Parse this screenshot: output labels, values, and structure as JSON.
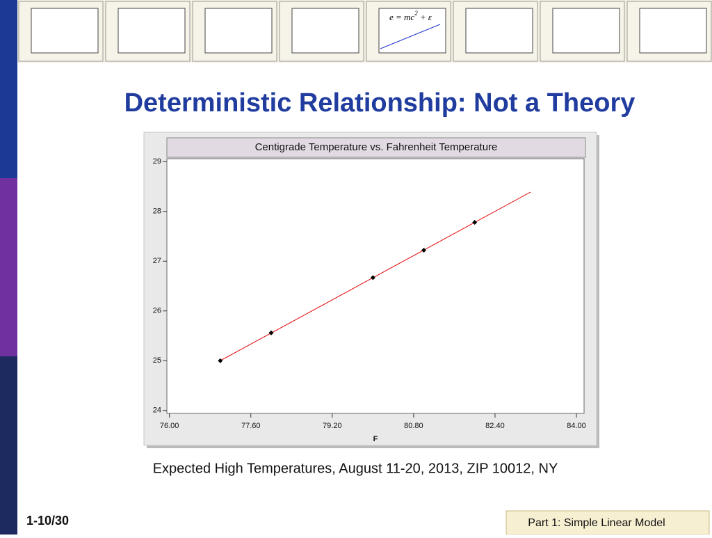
{
  "slide": {
    "title": "Deterministic Relationship: Not a Theory",
    "caption": "Expected High Temperatures, August 11-20, 2013, ZIP 10012, NY",
    "page_number": "1-10/30",
    "section": "Part 1: Simple Linear Model",
    "banner_equation": {
      "base": "e = mc",
      "exponent": "2",
      "tail": "+ ε"
    }
  },
  "chart_data": {
    "type": "scatter",
    "title": "Centigrade Temperature vs. Fahrenheit Temperature",
    "x_label": "F",
    "x": [
      77,
      78,
      80,
      81,
      82
    ],
    "series": [
      {
        "color": "#000000",
        "values": [
          25.0,
          25.56,
          26.67,
          27.22,
          27.78
        ]
      }
    ],
    "fit_line": {
      "color": "#e00000",
      "x": [
        77,
        83.1
      ],
      "values": [
        25.0,
        28.39
      ]
    },
    "xlim": [
      75.95,
      84.15
    ],
    "ylim": [
      23.94,
      29.06
    ],
    "xticks": [
      {
        "value": 76,
        "label": "76.00"
      },
      {
        "value": 77.6,
        "label": "77.60"
      },
      {
        "value": 79.2,
        "label": "79.20"
      },
      {
        "value": 80.8,
        "label": "80.80"
      },
      {
        "value": 82.4,
        "label": "82.40"
      },
      {
        "value": 84,
        "label": "84.00"
      }
    ],
    "yticks": [
      24,
      25,
      26,
      27,
      28,
      29
    ],
    "grid": false
  }
}
